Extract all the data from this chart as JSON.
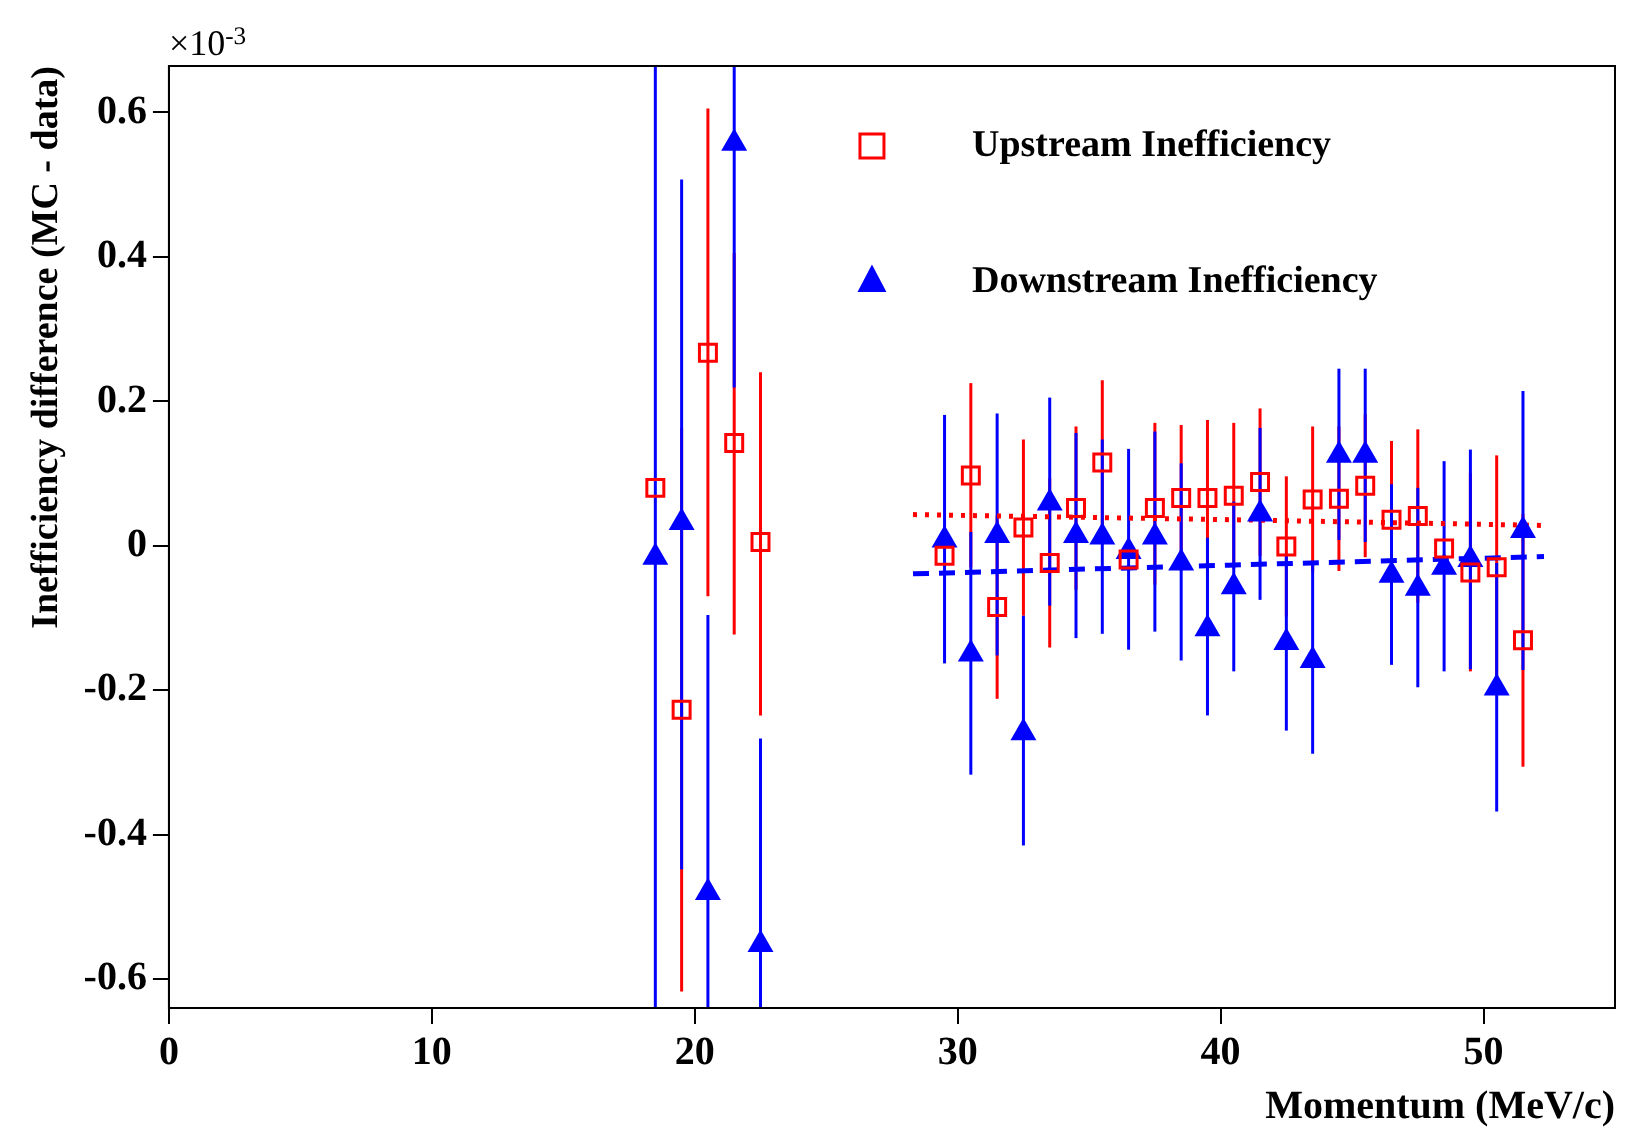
{
  "chart_data": {
    "type": "scatter",
    "xlabel": "Momentum (MeV/c)",
    "ylabel": "Inefficiency difference (MC - data)",
    "annotations": [
      "×10$^{-3}$"
    ],
    "x": [
      18.5,
      19.5,
      20.5,
      21.5,
      22.5,
      29.5,
      30.5,
      31.5,
      32.5,
      33.5,
      34.5,
      35.5,
      36.5,
      37.5,
      38.5,
      39.5,
      40.5,
      41.5,
      42.5,
      43.5,
      44.5,
      45.5,
      46.5,
      47.5,
      48.5,
      49.5,
      50.5,
      51.5
    ],
    "xlim": [
      0,
      55
    ],
    "xticks": [
      0,
      10,
      20,
      30,
      40,
      50
    ],
    "ylim": [
      -0.64,
      0.664
    ],
    "yticks": [
      -0.6,
      -0.4,
      -0.2,
      0,
      0.2,
      0.4,
      0.6
    ],
    "grid": false,
    "legend": "top right",
    "series": [
      {
        "name": "Upstream Inefficiency",
        "type": "scatter",
        "marker": "square",
        "color": "#ff0000",
        "values": [
          0.08,
          -0.227,
          0.267,
          0.142,
          0.005,
          -0.014,
          0.097,
          -0.085,
          0.025,
          -0.024,
          0.052,
          0.115,
          -0.019,
          0.052,
          0.066,
          0.066,
          0.069,
          0.088,
          -0.001,
          0.064,
          0.065,
          0.083,
          0.036,
          0.041,
          -0.004,
          -0.037,
          -0.03,
          -0.131
        ],
        "errors": [
          null,
          [
            -0.617,
            0.163
          ],
          [
            -0.07,
            0.605
          ],
          [
            -0.123,
            0.405
          ],
          [
            -0.235,
            0.24
          ],
          null,
          [
            -0.03,
            0.225
          ],
          [
            -0.212,
            0.042
          ],
          [
            -0.097,
            0.147
          ],
          [
            -0.141,
            0.093
          ],
          [
            -0.061,
            0.165
          ],
          [
            0.001,
            0.229
          ],
          null,
          [
            -0.054,
            0.17
          ],
          [
            -0.035,
            0.167
          ],
          [
            -0.042,
            0.174
          ],
          [
            -0.032,
            0.17
          ],
          [
            -0.014,
            0.19
          ],
          [
            -0.098,
            0.096
          ],
          [
            -0.037,
            0.165
          ],
          [
            -0.035,
            0.165
          ],
          [
            -0.016,
            0.182
          ],
          [
            -0.073,
            0.145
          ],
          [
            -0.079,
            0.161
          ],
          null,
          [
            -0.174,
            0.1
          ],
          [
            -0.185,
            0.125
          ],
          [
            -0.306,
            0.044
          ]
        ]
      },
      {
        "name": "Downstream Inefficiency",
        "type": "scatter",
        "marker": "triangle",
        "color": "#0000ff",
        "values": [
          -0.016,
          0.032,
          -0.48,
          0.557,
          -0.552,
          0.008,
          -0.15,
          0.014,
          -0.259,
          0.059,
          0.014,
          0.012,
          -0.008,
          0.012,
          -0.024,
          -0.115,
          -0.057,
          0.044,
          -0.134,
          -0.159,
          0.125,
          0.125,
          -0.041,
          -0.059,
          -0.03,
          -0.019,
          -0.197,
          0.021
        ],
        "errors": [
          [
            -0.64,
            0.664
          ],
          [
            -0.448,
            0.507
          ],
          [
            -0.64,
            -0.096
          ],
          [
            0.219,
            0.664
          ],
          [
            -0.64,
            -0.267
          ],
          [
            -0.163,
            0.181
          ],
          [
            -0.317,
            0.019
          ],
          [
            -0.152,
            0.183
          ],
          [
            -0.415,
            -0.097
          ],
          [
            -0.083,
            0.205
          ],
          [
            -0.128,
            0.156
          ],
          [
            -0.122,
            0.147
          ],
          [
            -0.144,
            0.134
          ],
          [
            -0.119,
            0.158
          ],
          [
            -0.159,
            0.114
          ],
          [
            -0.235,
            0.011
          ],
          [
            -0.174,
            0.061
          ],
          [
            -0.075,
            0.163
          ],
          [
            -0.256,
            -0.012
          ],
          [
            -0.288,
            -0.026
          ],
          [
            0.008,
            0.245
          ],
          [
            0.005,
            0.245
          ],
          [
            -0.165,
            0.085
          ],
          [
            -0.196,
            0.08
          ],
          [
            -0.174,
            0.117
          ],
          [
            -0.171,
            0.133
          ],
          [
            -0.368,
            -0.024
          ],
          [
            -0.172,
            0.214
          ]
        ]
      },
      {
        "type": "line",
        "color": "#ff0000",
        "line_style": "dotted",
        "marker": "none",
        "x": [
          28.3,
          40.3,
          52.3
        ],
        "values": [
          0.043,
          0.036,
          0.028
        ]
      },
      {
        "type": "line",
        "color": "#0000ff",
        "line_style": "dashed",
        "marker": "none",
        "x": [
          28.3,
          40.3,
          52.3
        ],
        "values": [
          -0.039,
          -0.027,
          -0.015
        ]
      }
    ]
  }
}
